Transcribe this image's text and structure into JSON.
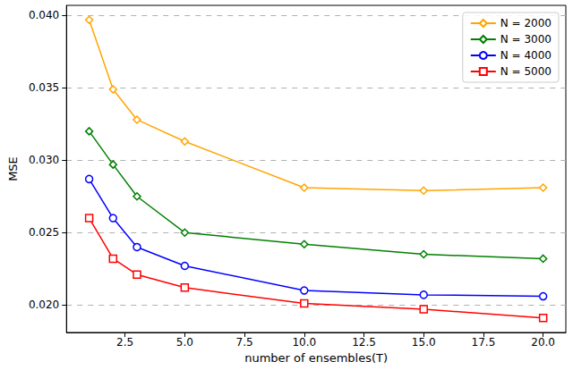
{
  "chart_data": {
    "type": "line",
    "x_label": "number of ensembles(T)",
    "y_label": "MSE",
    "x": [
      1,
      2,
      3,
      5,
      10,
      15,
      20
    ],
    "series": [
      {
        "name": "N = 2000",
        "color": "#ffa500",
        "marker": "diamond",
        "values": [
          0.0397,
          0.0349,
          0.0328,
          0.0313,
          0.0281,
          0.0279,
          0.0281
        ]
      },
      {
        "name": "N = 3000",
        "color": "#008000",
        "marker": "diamond",
        "values": [
          0.032,
          0.0297,
          0.0275,
          0.025,
          0.0242,
          0.0235,
          0.0232
        ]
      },
      {
        "name": "N = 4000",
        "color": "#0000ff",
        "marker": "circle",
        "values": [
          0.0287,
          0.026,
          0.024,
          0.0227,
          0.021,
          0.0207,
          0.0206
        ]
      },
      {
        "name": "N = 5000",
        "color": "#ff0000",
        "marker": "square",
        "values": [
          0.026,
          0.0232,
          0.0221,
          0.0212,
          0.0201,
          0.0197,
          0.0191
        ]
      }
    ],
    "xlim": [
      0.05,
      20.95
    ],
    "xticks": [
      2.5,
      {
        "value": 5,
        "label": "5.0"
      },
      7.5,
      {
        "value": 10,
        "label": "10.0"
      },
      12.5,
      {
        "value": 15,
        "label": "15.0"
      },
      17.5,
      {
        "value": 20,
        "label": "20.0"
      }
    ],
    "ylim": [
      0.0181,
      0.0407
    ],
    "yticks": [
      {
        "value": 0.02,
        "label": "0.020"
      },
      {
        "value": 0.025,
        "label": "0.025"
      },
      {
        "value": 0.03,
        "label": "0.030"
      },
      {
        "value": 0.035,
        "label": "0.035"
      },
      {
        "value": 0.04,
        "label": "0.040"
      }
    ],
    "grid": "y",
    "legend": "upper right"
  }
}
